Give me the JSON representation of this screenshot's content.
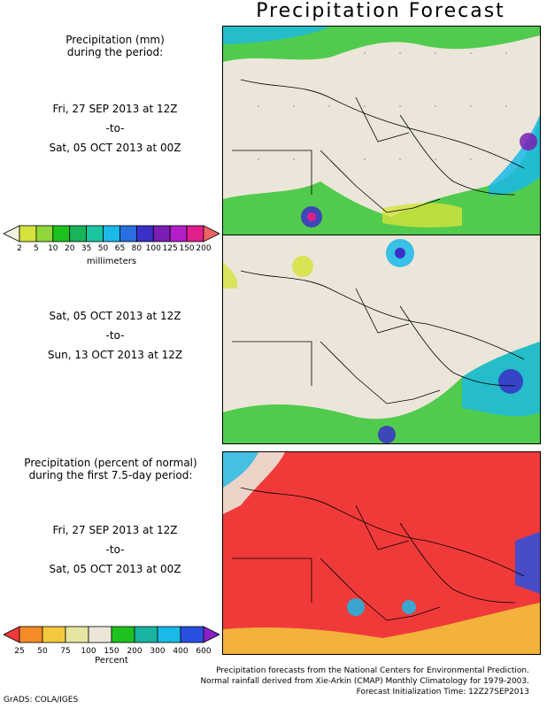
{
  "title": "Precipitation Forecast",
  "panel1": {
    "heading": [
      "Precipitation (mm)",
      "during the period:"
    ],
    "period": [
      "Fri, 27 SEP 2013 at 12Z",
      "-to-",
      "Sat, 05 OCT 2013 at 00Z"
    ]
  },
  "panel2": {
    "period": [
      "Sat, 05 OCT 2013 at 12Z",
      "-to-",
      "Sun, 13 OCT 2013 at 12Z"
    ]
  },
  "panel3": {
    "heading": [
      "Precipitation (percent of normal)",
      "during the first 7.5-day period:"
    ],
    "period": [
      "Fri, 27 SEP 2013 at 12Z",
      "-to-",
      "Sat, 05 OCT 2013 at 00Z"
    ]
  },
  "colorbar_mm": {
    "unit": "millimeters",
    "ticks": [
      "2",
      "5",
      "10",
      "20",
      "35",
      "50",
      "65",
      "80",
      "100",
      "125",
      "150",
      "200"
    ],
    "colors": [
      "#f2f2e0",
      "#d6e23c",
      "#8fd63a",
      "#1ec21e",
      "#18b45a",
      "#1ac6a0",
      "#1ab9e8",
      "#2a6fe0",
      "#3a30c8",
      "#7a1eb4",
      "#b41ec8",
      "#e01e8c",
      "#f06464"
    ]
  },
  "colorbar_pct": {
    "unit": "Percent",
    "ticks": [
      "25",
      "50",
      "75",
      "100",
      "150",
      "200",
      "300",
      "400",
      "600"
    ],
    "colors": [
      "#f03a3a",
      "#f58a28",
      "#f2c83c",
      "#e6e6a0",
      "#ece6d8",
      "#1ec21e",
      "#18b4a0",
      "#1ab9e8",
      "#2a50e0",
      "#8a1ec8"
    ]
  },
  "footer": [
    "Precipitation forecasts from the National Centers for Environmental Prediction.",
    "Normal rainfall derived from Xie-Arkin (CMAP) Monthly Climatology for 1979-2003.",
    "Forecast Initialization Time: 12Z27SEP2013"
  ],
  "credit": "GrADS: COLA/IGES"
}
